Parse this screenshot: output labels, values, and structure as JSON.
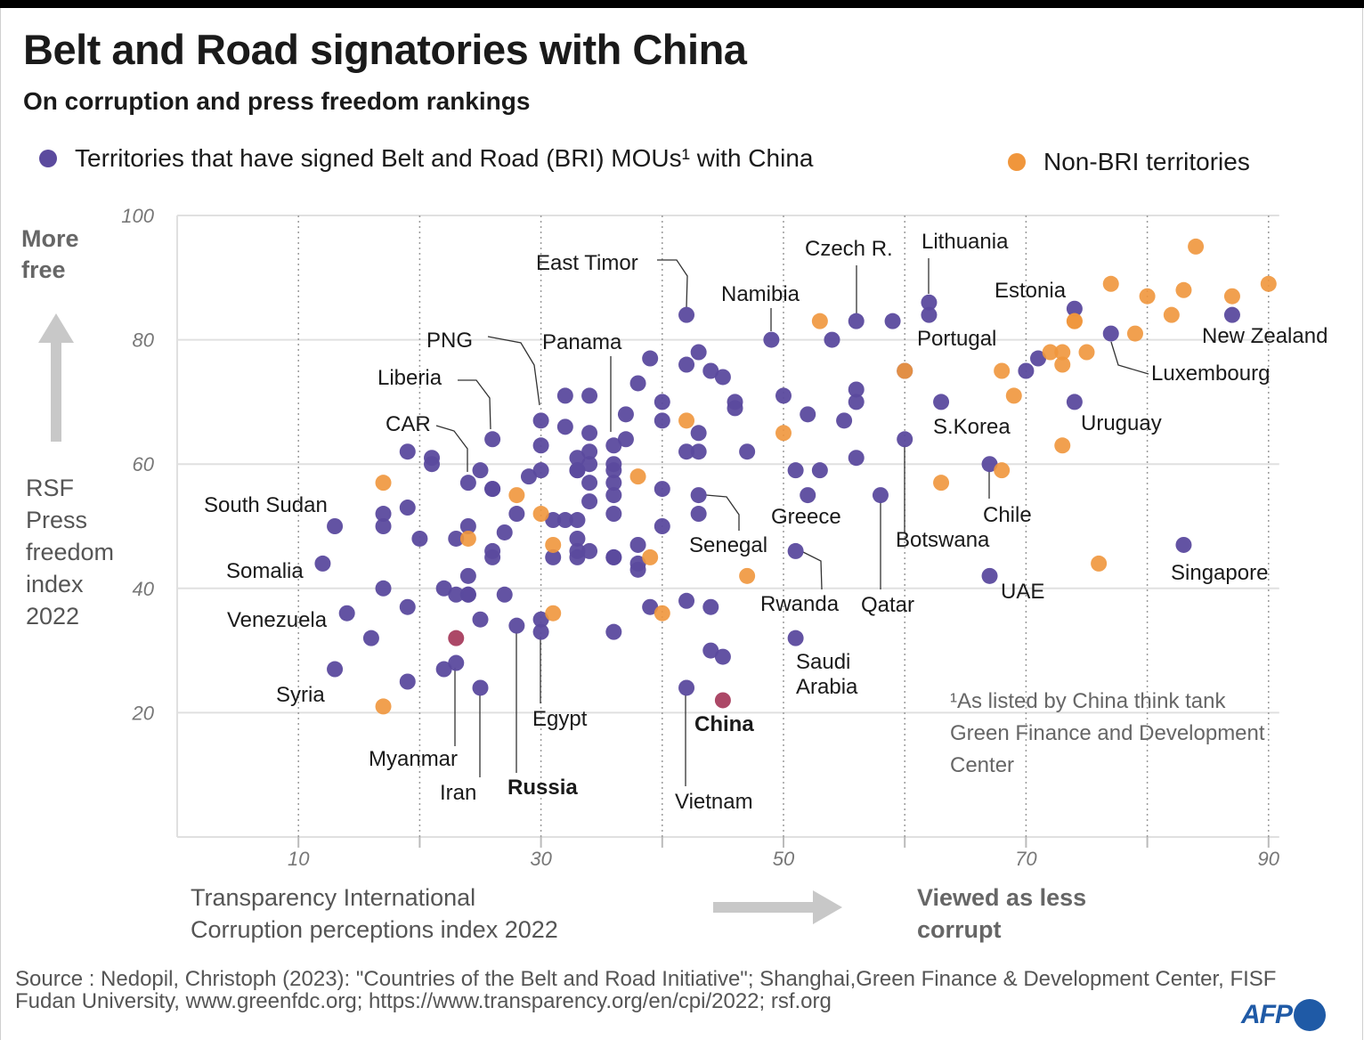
{
  "title": "Belt and Road signatories with China",
  "subtitle": "On corruption and press freedom rankings",
  "legend": [
    {
      "label": "Territories that have signed Belt and Road (BRI) MOUs¹ with China",
      "color": "#5b4a9e"
    },
    {
      "label": "Non-BRI territories",
      "color": "#f0963c"
    }
  ],
  "colors": {
    "bri": "#5b4a9e",
    "non_bri": "#f0963c",
    "china": "#a83e5f",
    "grid": "#e0e0e0",
    "arrow": "#c8c8c8"
  },
  "y_direction_label": "More free",
  "x_direction_label": "Viewed as less corrupt",
  "footnote": "¹As listed by China think tank Green Finance and Development Center",
  "source": "Source : Nedopil, Christoph (2023): \"Countries of the Belt and Road Initiative\"; Shanghai,Green Finance & Development Center, FISF Fudan University, www.greenfdc.org; https://www.transparency.org/en/cpi/2022; rsf.org",
  "logo": "AFP",
  "chart_data": {
    "type": "scatter",
    "title": "Belt and Road signatories with China",
    "xlabel": "Transparency International Corruption perceptions index 2022",
    "ylabel": "RSF Press freedom index 2022",
    "xlim": [
      0,
      90
    ],
    "ylim": [
      0,
      100
    ],
    "x_ticks": [
      10,
      30,
      50,
      70,
      90
    ],
    "x_minor_gridlines": [
      20,
      40,
      60,
      80
    ],
    "y_ticks": [
      20,
      40,
      60,
      80,
      100
    ],
    "grid": true,
    "legend_position": "top",
    "series": [
      {
        "name": "Territories that have signed Belt and Road (BRI) MOUs¹ with China",
        "color": "#5b4a9e",
        "points": [
          [
            13,
            50
          ],
          [
            12,
            44
          ],
          [
            14,
            36
          ],
          [
            13,
            27
          ],
          [
            16,
            32
          ],
          [
            17,
            52
          ],
          [
            17,
            50
          ],
          [
            17,
            40
          ],
          [
            19,
            62
          ],
          [
            19,
            53
          ],
          [
            19,
            37
          ],
          [
            19,
            25
          ],
          [
            20,
            48
          ],
          [
            21,
            61
          ],
          [
            21,
            60
          ],
          [
            22,
            40
          ],
          [
            22,
            27
          ],
          [
            23,
            48
          ],
          [
            23,
            39
          ],
          [
            23,
            28
          ],
          [
            24,
            57
          ],
          [
            24,
            50
          ],
          [
            24,
            42
          ],
          [
            24,
            39
          ],
          [
            24,
            39
          ],
          [
            25,
            59
          ],
          [
            25,
            35
          ],
          [
            25,
            24
          ],
          [
            26,
            64
          ],
          [
            26,
            56
          ],
          [
            26,
            56
          ],
          [
            26,
            46
          ],
          [
            26,
            45
          ],
          [
            27,
            49
          ],
          [
            27,
            39
          ],
          [
            28,
            52
          ],
          [
            28,
            34
          ],
          [
            29,
            58
          ],
          [
            30,
            67
          ],
          [
            30,
            63
          ],
          [
            30,
            59
          ],
          [
            30,
            35
          ],
          [
            30,
            33
          ],
          [
            31,
            51
          ],
          [
            31,
            45
          ],
          [
            32,
            71
          ],
          [
            32,
            66
          ],
          [
            32,
            51
          ],
          [
            33,
            61
          ],
          [
            33,
            59
          ],
          [
            33,
            59
          ],
          [
            33,
            51
          ],
          [
            33,
            48
          ],
          [
            33,
            46
          ],
          [
            33,
            45
          ],
          [
            34,
            71
          ],
          [
            34,
            65
          ],
          [
            34,
            62
          ],
          [
            34,
            60
          ],
          [
            34,
            57
          ],
          [
            34,
            54
          ],
          [
            34,
            46
          ],
          [
            36,
            63
          ],
          [
            36,
            60
          ],
          [
            36,
            59
          ],
          [
            36,
            57
          ],
          [
            36,
            55
          ],
          [
            36,
            52
          ],
          [
            36,
            45
          ],
          [
            36,
            45
          ],
          [
            36,
            33
          ],
          [
            37,
            68
          ],
          [
            37,
            64
          ],
          [
            38,
            73
          ],
          [
            38,
            47
          ],
          [
            38,
            44
          ],
          [
            38,
            43
          ],
          [
            39,
            77
          ],
          [
            39,
            37
          ],
          [
            40,
            70
          ],
          [
            40,
            67
          ],
          [
            40,
            56
          ],
          [
            40,
            50
          ],
          [
            42,
            84
          ],
          [
            42,
            76
          ],
          [
            42,
            62
          ],
          [
            42,
            38
          ],
          [
            42,
            24
          ],
          [
            43,
            78
          ],
          [
            43,
            65
          ],
          [
            43,
            62
          ],
          [
            43,
            55
          ],
          [
            43,
            52
          ],
          [
            44,
            75
          ],
          [
            44,
            37
          ],
          [
            44,
            30
          ],
          [
            45,
            74
          ],
          [
            45,
            29
          ],
          [
            46,
            70
          ],
          [
            46,
            69
          ],
          [
            47,
            62
          ],
          [
            49,
            80
          ],
          [
            50,
            71
          ],
          [
            51,
            59
          ],
          [
            51,
            46
          ],
          [
            51,
            32
          ],
          [
            52,
            68
          ],
          [
            52,
            55
          ],
          [
            53,
            59
          ],
          [
            54,
            80
          ],
          [
            55,
            67
          ],
          [
            56,
            83
          ],
          [
            56,
            72
          ],
          [
            56,
            70
          ],
          [
            56,
            61
          ],
          [
            58,
            55
          ],
          [
            59,
            83
          ],
          [
            60,
            75
          ],
          [
            60,
            64
          ],
          [
            62,
            86
          ],
          [
            62,
            84
          ],
          [
            63,
            70
          ],
          [
            67,
            60
          ],
          [
            67,
            42
          ],
          [
            70,
            75
          ],
          [
            71,
            77
          ],
          [
            74,
            85
          ],
          [
            74,
            70
          ],
          [
            77,
            81
          ],
          [
            83,
            47
          ],
          [
            87,
            84
          ]
        ]
      },
      {
        "name": "Non-BRI territories",
        "color": "#f0963c",
        "points": [
          [
            17,
            57
          ],
          [
            17,
            21
          ],
          [
            24,
            48
          ],
          [
            28,
            55
          ],
          [
            30,
            52
          ],
          [
            31,
            47
          ],
          [
            31,
            36
          ],
          [
            38,
            58
          ],
          [
            39,
            45
          ],
          [
            40,
            36
          ],
          [
            42,
            67
          ],
          [
            47,
            42
          ],
          [
            50,
            65
          ],
          [
            53,
            83
          ],
          [
            60,
            75
          ],
          [
            63,
            57
          ],
          [
            68,
            75
          ],
          [
            68,
            59
          ],
          [
            69,
            71
          ],
          [
            72,
            78
          ],
          [
            73,
            78
          ],
          [
            73,
            76
          ],
          [
            73,
            63
          ],
          [
            74,
            83
          ],
          [
            74,
            83
          ],
          [
            75,
            78
          ],
          [
            76,
            44
          ],
          [
            77,
            89
          ],
          [
            79,
            81
          ],
          [
            80,
            87
          ],
          [
            82,
            84
          ],
          [
            83,
            88
          ],
          [
            84,
            95
          ],
          [
            87,
            87
          ],
          [
            90,
            89
          ]
        ]
      },
      {
        "name": "China",
        "color": "#a83e5f",
        "points": [
          [
            45,
            22
          ],
          [
            23,
            32
          ]
        ]
      }
    ],
    "annotations": [
      {
        "text": "East Timor",
        "x": 42,
        "y": 84
      },
      {
        "text": "Czech R.",
        "x": 56,
        "y": 83
      },
      {
        "text": "Lithuania",
        "x": 62,
        "y": 86
      },
      {
        "text": "Namibia",
        "x": 49,
        "y": 80
      },
      {
        "text": "Estonia",
        "x": 74,
        "y": 85
      },
      {
        "text": "New Zealand",
        "x": 87,
        "y": 84
      },
      {
        "text": "Portugal",
        "x": 60,
        "y": 75
      },
      {
        "text": "Luxembourg",
        "x": 77,
        "y": 81
      },
      {
        "text": "PNG",
        "x": 30,
        "y": 67
      },
      {
        "text": "Panama",
        "x": 36,
        "y": 63
      },
      {
        "text": "Liberia",
        "x": 26,
        "y": 64
      },
      {
        "text": "CAR",
        "x": 24,
        "y": 57
      },
      {
        "text": "S.Korea",
        "x": 63,
        "y": 70
      },
      {
        "text": "Uruguay",
        "x": 74,
        "y": 70
      },
      {
        "text": "South Sudan",
        "x": 13,
        "y": 50
      },
      {
        "text": "Chile",
        "x": 67,
        "y": 60
      },
      {
        "text": "Greece",
        "x": 52,
        "y": 55
      },
      {
        "text": "Senegal",
        "x": 43,
        "y": 55
      },
      {
        "text": "Botswana",
        "x": 60,
        "y": 64
      },
      {
        "text": "Somalia",
        "x": 12,
        "y": 44
      },
      {
        "text": "Singapore",
        "x": 83,
        "y": 47
      },
      {
        "text": "Rwanda",
        "x": 51,
        "y": 46
      },
      {
        "text": "Qatar",
        "x": 58,
        "y": 55
      },
      {
        "text": "UAE",
        "x": 67,
        "y": 42
      },
      {
        "text": "Venezuela",
        "x": 14,
        "y": 36
      },
      {
        "text": "Saudi Arabia",
        "x": 51,
        "y": 32
      },
      {
        "text": "Syria",
        "x": 13,
        "y": 27
      },
      {
        "text": "Egypt",
        "x": 30,
        "y": 35
      },
      {
        "text": "China",
        "x": 45,
        "y": 22
      },
      {
        "text": "Myanmar",
        "x": 23,
        "y": 28
      },
      {
        "text": "Iran",
        "x": 25,
        "y": 24
      },
      {
        "text": "Russia",
        "x": 28,
        "y": 34
      },
      {
        "text": "Vietnam",
        "x": 42,
        "y": 24
      }
    ]
  }
}
